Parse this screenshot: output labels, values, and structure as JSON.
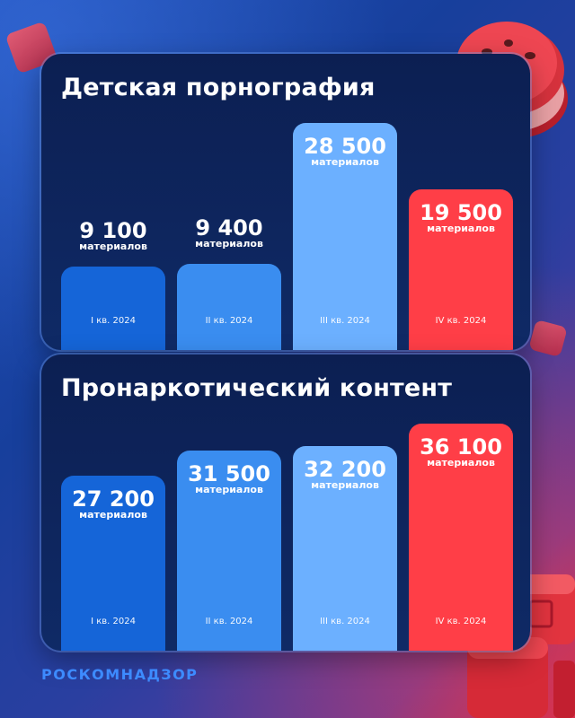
{
  "brand": {
    "name": "РОСКОМНАДЗОР"
  },
  "colors": {
    "q1": "#1565d8",
    "q2": "#3a8df0",
    "q3": "#6cb0ff",
    "q4": "#ff3e47"
  },
  "chart_data": [
    {
      "type": "bar",
      "title": "Детская порнография",
      "unit_label": "материалов",
      "categories": [
        "I кв. 2024",
        "II кв. 2024",
        "III кв. 2024",
        "IV кв. 2024"
      ],
      "values": [
        9100,
        9400,
        28500,
        19500
      ],
      "value_labels": [
        "9 100",
        "9 400",
        "28 500",
        "19 500"
      ],
      "ylim": [
        0,
        28500
      ],
      "grid": false
    },
    {
      "type": "bar",
      "title": "Пронаркотический контент",
      "unit_label": "материалов",
      "categories": [
        "I кв. 2024",
        "II кв. 2024",
        "III кв. 2024",
        "IV кв. 2024"
      ],
      "values": [
        27200,
        31500,
        32200,
        36100
      ],
      "value_labels": [
        "27 200",
        "31 500",
        "32 200",
        "36 100"
      ],
      "ylim": [
        0,
        36100
      ],
      "grid": false
    }
  ]
}
